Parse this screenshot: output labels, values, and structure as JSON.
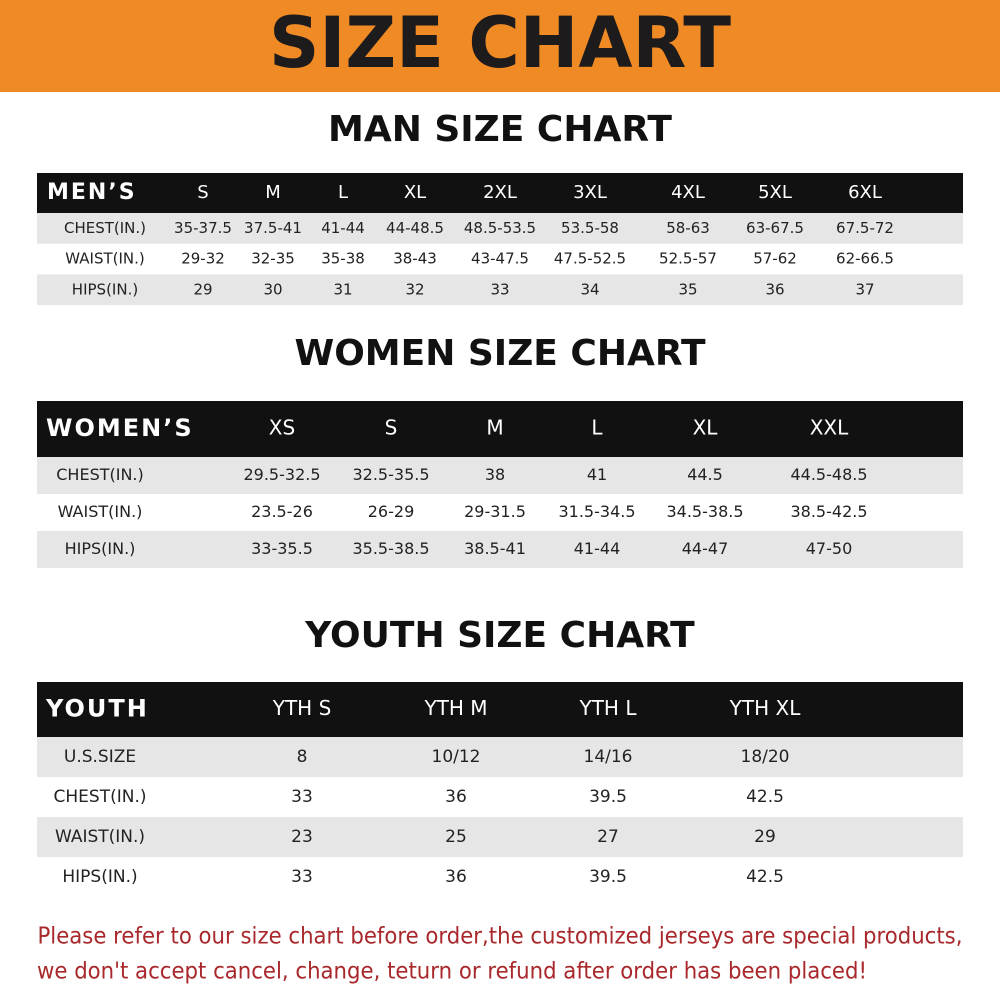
{
  "header": {
    "title": "SIZE CHART"
  },
  "sections": [
    {
      "title": "MAN SIZE CHART",
      "columns": [
        "MEN’S",
        "S",
        "M",
        "L",
        "XL",
        "2XL",
        "3XL",
        "4XL",
        "5XL",
        "6XL"
      ],
      "rows": [
        [
          "CHEST(IN.)",
          "35-37.5",
          "37.5-41",
          "41-44",
          "44-48.5",
          "48.5-53.5",
          "53.5-58",
          "58-63",
          "63-67.5",
          "67.5-72"
        ],
        [
          "WAIST(IN.)",
          "29-32",
          "32-35",
          "35-38",
          "38-43",
          "43-47.5",
          "47.5-52.5",
          "52.5-57",
          "57-62",
          "62-66.5"
        ],
        [
          "HIPS(IN.)",
          "29",
          "30",
          "31",
          "32",
          "33",
          "34",
          "35",
          "36",
          "37"
        ]
      ]
    },
    {
      "title": "WOMEN SIZE CHART",
      "columns": [
        "WOMEN’S",
        "XS",
        "S",
        "M",
        "L",
        "XL",
        "XXL"
      ],
      "rows": [
        [
          "CHEST(IN.)",
          "29.5-32.5",
          "32.5-35.5",
          "38",
          "41",
          "44.5",
          "44.5-48.5"
        ],
        [
          "WAIST(IN.)",
          "23.5-26",
          "26-29",
          "29-31.5",
          "31.5-34.5",
          "34.5-38.5",
          "38.5-42.5"
        ],
        [
          "HIPS(IN.)",
          "33-35.5",
          "35.5-38.5",
          "38.5-41",
          "41-44",
          "44-47",
          "47-50"
        ]
      ]
    },
    {
      "title": "YOUTH SIZE CHART",
      "columns": [
        "YOUTH",
        "YTH S",
        "YTH M",
        "YTH L",
        "YTH XL"
      ],
      "rows": [
        [
          "U.S.SIZE",
          "8",
          "10/12",
          "14/16",
          "18/20"
        ],
        [
          "CHEST(IN.)",
          "33",
          "36",
          "39.5",
          "42.5"
        ],
        [
          "WAIST(IN.)",
          "23",
          "25",
          "27",
          "29"
        ],
        [
          "HIPS(IN.)",
          "33",
          "36",
          "39.5",
          "42.5"
        ]
      ]
    }
  ],
  "note": [
    "Please refer to our size chart before order,the customized jerseys are special products,",
    "we don't accept cancel, change, teturn or refund after order has been placed!"
  ]
}
